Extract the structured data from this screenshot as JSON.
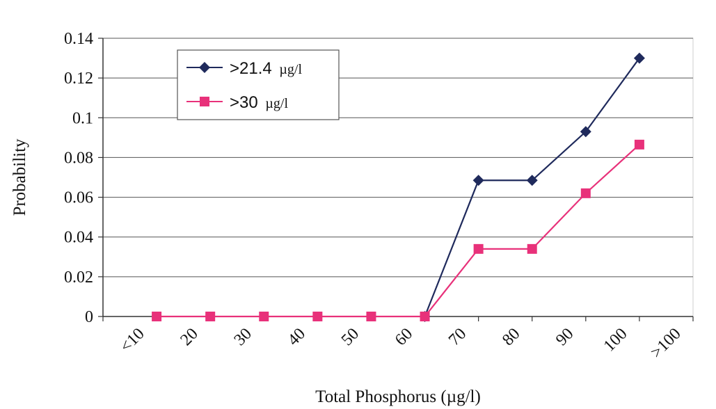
{
  "chart_data": {
    "type": "line",
    "title": "",
    "xlabel": "Total Phosphorus (µg/l)",
    "ylabel": "Probability",
    "categories": [
      "<10",
      "20",
      "30",
      "40",
      "50",
      "60",
      "70",
      "80",
      "90",
      "100",
      ">100"
    ],
    "ylim": [
      0,
      0.14
    ],
    "yticks": [
      "0",
      "0.02",
      "0.04",
      "0.06",
      "0.08",
      "0.1",
      "0.12",
      "0.14"
    ],
    "grid": true,
    "legend_position": "top-left",
    "series": [
      {
        "name": ">21.4 µg/l",
        "name_main": ">21.4",
        "name_unit": "µg/l",
        "color": "#1f2a5c",
        "marker": "diamond",
        "x": [
          70,
          80,
          90,
          100,
          110
        ],
        "values": [
          0,
          0.0685,
          0.0685,
          0.093,
          0.13
        ]
      },
      {
        "name": ">30 µg/l",
        "name_main": ">30",
        "name_unit": "µg/l",
        "color": "#e8317a",
        "marker": "square",
        "x": [
          20,
          30,
          40,
          50,
          60,
          70,
          80,
          90,
          100,
          110
        ],
        "values": [
          0,
          0,
          0,
          0,
          0,
          0,
          0.034,
          0.034,
          0.062,
          0.0865
        ]
      }
    ]
  }
}
